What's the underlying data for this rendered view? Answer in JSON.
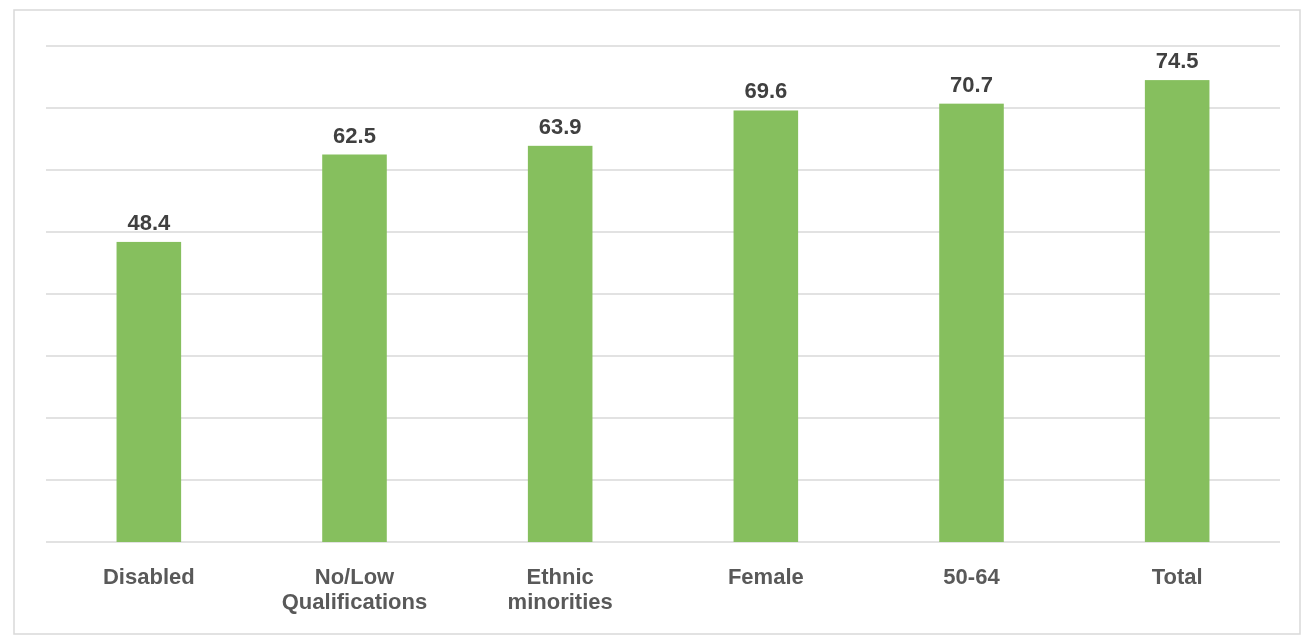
{
  "chart_data": {
    "type": "bar",
    "categories": [
      "Disabled",
      "No/Low Qualifications",
      "Ethnic minorities",
      "Female",
      "50-64",
      "Total"
    ],
    "values": [
      48.4,
      62.5,
      63.9,
      69.6,
      70.7,
      74.5
    ],
    "color": "#86bf5e",
    "data_labels": true,
    "ylim": [
      0,
      80
    ],
    "yticks": [
      {
        "value": 0,
        "label": null
      },
      {
        "value": 10,
        "label": null
      },
      {
        "value": 20,
        "label": null
      },
      {
        "value": 30,
        "label": null
      },
      {
        "value": 40,
        "label": null
      },
      {
        "value": 50,
        "label": null
      },
      {
        "value": 60,
        "label": null
      },
      {
        "value": 70,
        "label": null
      },
      {
        "value": 80,
        "label": null
      }
    ],
    "grid": "y",
    "tick_labels": "x"
  }
}
